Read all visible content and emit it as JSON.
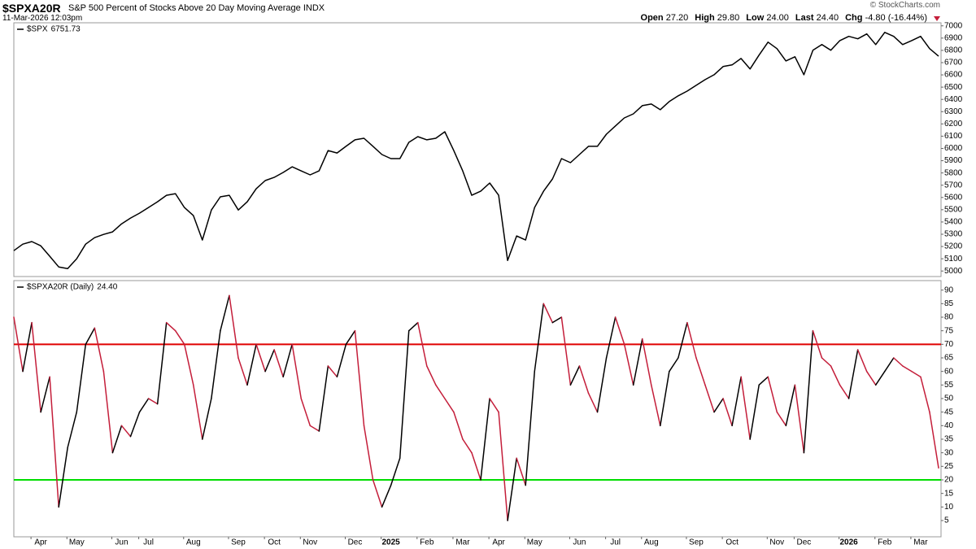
{
  "header": {
    "symbol": "$SPXA20R",
    "description": "S&P 500 Percent of Stocks Above 20 Day Moving Average",
    "exchange": "INDX",
    "date": "11-Mar-2026 12:03pm",
    "copyright": "© StockCharts.com",
    "quote": [
      {
        "label": "Open",
        "value": "27.20"
      },
      {
        "label": "High",
        "value": "29.80"
      },
      {
        "label": "Low",
        "value": "24.00"
      },
      {
        "label": "Last",
        "value": "24.40"
      },
      {
        "label": "Chg",
        "value": "-4.80 (-16.44%)"
      }
    ]
  },
  "chart_data": [
    {
      "type": "line",
      "ylim": [
        4955,
        7025
      ],
      "yticks": [
        5000,
        5100,
        5200,
        5300,
        5400,
        5500,
        5600,
        5700,
        5800,
        5900,
        6000,
        6100,
        6200,
        6300,
        6400,
        6500,
        6600,
        6700,
        6800,
        6900,
        7000
      ],
      "series": [
        {
          "name": "$SPX",
          "last": "6751.73",
          "color": "#000000",
          "values": [
            5166,
            5219,
            5240,
            5206,
            5120,
            5033,
            5020,
            5100,
            5219,
            5272,
            5299,
            5319,
            5385,
            5432,
            5472,
            5518,
            5565,
            5618,
            5631,
            5518,
            5452,
            5253,
            5498,
            5605,
            5618,
            5498,
            5565,
            5671,
            5738,
            5764,
            5804,
            5850,
            5817,
            5784,
            5817,
            5983,
            5963,
            6017,
            6070,
            6083,
            6017,
            5950,
            5917,
            5917,
            6050,
            6096,
            6070,
            6083,
            6136,
            5983,
            5817,
            5618,
            5651,
            5718,
            5618,
            5086,
            5286,
            5253,
            5518,
            5651,
            5751,
            5917,
            5884,
            5950,
            6017,
            6017,
            6116,
            6183,
            6249,
            6282,
            6349,
            6362,
            6316,
            6382,
            6429,
            6468,
            6515,
            6561,
            6601,
            6668,
            6681,
            6734,
            6648,
            6761,
            6867,
            6814,
            6714,
            6748,
            6601,
            6801,
            6847,
            6801,
            6880,
            6914,
            6894,
            6934,
            6847,
            6947,
            6914,
            6847,
            6880,
            6914,
            6814,
            6752
          ]
        }
      ]
    },
    {
      "type": "line",
      "ylim": [
        -1,
        93.5
      ],
      "yticks": [
        5,
        10,
        15,
        20,
        25,
        30,
        35,
        40,
        45,
        50,
        55,
        60,
        65,
        70,
        75,
        80,
        85,
        90
      ],
      "reference_lines": [
        {
          "value": 70,
          "color": "#e00000"
        },
        {
          "value": 20,
          "color": "#00dd00"
        }
      ],
      "categories": [
        null,
        null,
        null,
        "Apr",
        null,
        null,
        null,
        "May",
        null,
        null,
        null,
        null,
        "Jun",
        null,
        null,
        "Jul",
        null,
        null,
        null,
        null,
        "Aug",
        null,
        null,
        null,
        null,
        "Sep",
        null,
        null,
        null,
        "Oct",
        null,
        null,
        null,
        "Nov",
        null,
        null,
        null,
        null,
        "Dec",
        null,
        null,
        null,
        "2025",
        null,
        null,
        null,
        "Feb",
        null,
        null,
        null,
        "Mar",
        null,
        null,
        null,
        "Apr",
        null,
        null,
        null,
        "May",
        null,
        null,
        null,
        null,
        "Jun",
        null,
        null,
        null,
        "Jul",
        null,
        null,
        null,
        "Aug",
        null,
        null,
        null,
        null,
        "Sep",
        null,
        null,
        null,
        "Oct",
        null,
        null,
        null,
        null,
        "Nov",
        null,
        null,
        "Dec",
        null,
        null,
        null,
        null,
        "2026",
        null,
        null,
        null,
        "Feb",
        null,
        null,
        null,
        "Mar",
        null,
        null
      ],
      "series": [
        {
          "name": "$SPXA20R (Daily)",
          "last": "24.40",
          "color": "#000000",
          "down_color": "#c41e3a",
          "values": [
            80,
            60,
            78,
            45,
            58,
            10,
            32,
            45,
            70,
            76,
            60,
            30,
            40,
            36,
            45,
            50,
            48,
            78,
            75,
            70,
            55,
            35,
            50,
            75,
            88,
            65,
            55,
            70,
            60,
            68,
            58,
            70,
            50,
            40,
            38,
            62,
            58,
            70,
            75,
            40,
            20,
            10,
            18,
            28,
            75,
            78,
            62,
            55,
            50,
            45,
            35,
            30,
            20,
            50,
            45,
            5,
            28,
            18,
            60,
            85,
            78,
            80,
            55,
            62,
            52,
            45,
            65,
            80,
            70,
            55,
            72,
            55,
            40,
            60,
            65,
            78,
            65,
            55,
            45,
            50,
            40,
            58,
            35,
            55,
            58,
            45,
            40,
            55,
            30,
            75,
            65,
            62,
            55,
            50,
            68,
            60,
            55,
            60,
            65,
            62,
            60,
            58,
            45,
            24.4
          ]
        }
      ]
    }
  ]
}
